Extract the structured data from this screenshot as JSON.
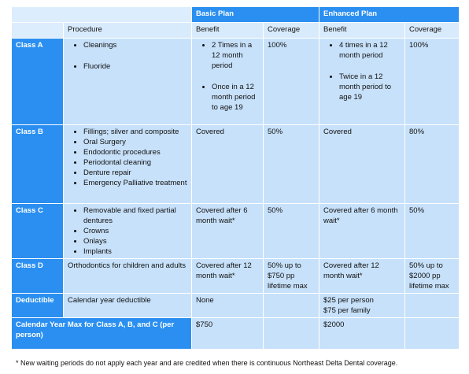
{
  "table": {
    "group_headers": [
      "Basic Plan",
      "Enhanced Plan"
    ],
    "column_headers": [
      "Procedure",
      "Benefit",
      "Coverage",
      "Benefit",
      "Coverage"
    ],
    "rows": [
      {
        "label": "Class A",
        "procedure": [
          "Cleanings",
          "Fluoride"
        ],
        "basic_benefit": [
          "2 Times in a 12 month period",
          "Once in a 12 month period to age 19"
        ],
        "basic_coverage": "100%",
        "enhanced_benefit": [
          "4 times in a 12 month period",
          "Twice in a 12 month period to age 19"
        ],
        "enhanced_coverage": "100%"
      },
      {
        "label": "Class B",
        "procedure": [
          "Fillings; silver and composite",
          "Oral Surgery",
          "Endodontic procedures",
          "Periodontal cleaning",
          "Denture repair",
          "Emergency Palliative treatment"
        ],
        "basic_benefit": "Covered",
        "basic_coverage": "50%",
        "enhanced_benefit": "Covered",
        "enhanced_coverage": "80%"
      },
      {
        "label": "Class C",
        "procedure": [
          "Removable and fixed partial dentures",
          "Crowns",
          "Onlays",
          "Implants"
        ],
        "basic_benefit": "Covered after 6 month wait*",
        "basic_coverage": "50%",
        "enhanced_benefit": "Covered after 6 month wait*",
        "enhanced_coverage": "50%"
      },
      {
        "label": "Class D",
        "procedure": "Orthodontics for children and adults",
        "basic_benefit": "Covered after 12 month wait*",
        "basic_coverage": "50% up to $750 pp lifetime max",
        "enhanced_benefit": "Covered after 12 month wait*",
        "enhanced_coverage": "50% up to $2000 pp lifetime max"
      },
      {
        "label": "Deductible",
        "procedure": "Calendar year deductible",
        "basic_benefit": "None",
        "enhanced_benefit": "$25 per person\n$75 per family"
      },
      {
        "label": "Calendar Year Max for Class A, B, and C (per person)",
        "basic_benefit": "$750",
        "enhanced_benefit": "$2000"
      }
    ]
  },
  "footnote": "* New waiting periods do not apply each year and are credited when there is continuous Northeast Delta Dental coverage."
}
